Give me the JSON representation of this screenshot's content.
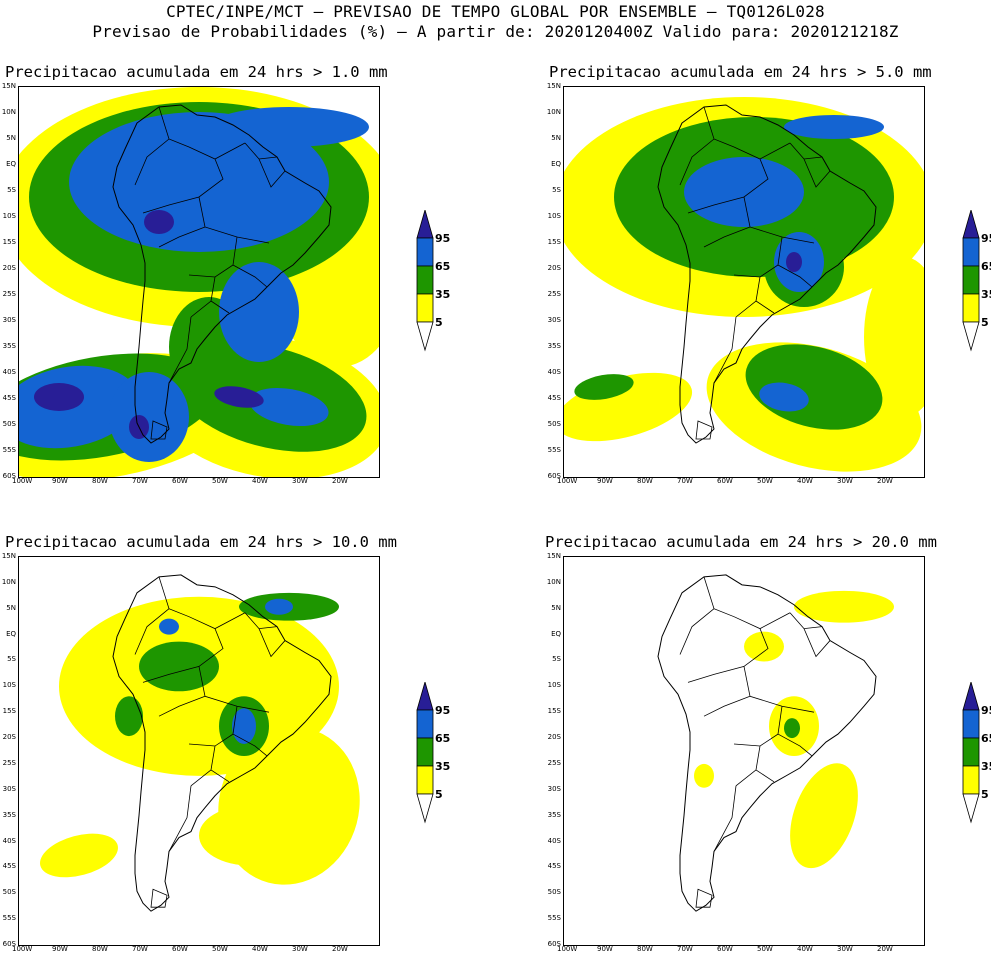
{
  "header": {
    "title_line1": "CPTEC/INPE/MCT – PREVISAO DE TEMPO GLOBAL POR ENSEMBLE – TQ0126L028",
    "title_line2": "Previsao de Probabilidades (%) –  A partir de: 2020120400Z  Valido para: 2020121218Z"
  },
  "colors": {
    "yellow": "#ffff00",
    "green": "#1e9600",
    "blue": "#1464d2",
    "darkblue": "#281e96",
    "outline": "#000000"
  },
  "lat_labels": [
    "15N",
    "10N",
    "5N",
    "EQ",
    "5S",
    "10S",
    "15S",
    "20S",
    "25S",
    "30S",
    "35S",
    "40S",
    "45S",
    "50S",
    "55S",
    "60S"
  ],
  "lon_labels": [
    "100W",
    "90W",
    "80W",
    "70W",
    "60W",
    "50W",
    "40W",
    "30W",
    "20W"
  ],
  "legend": {
    "levels": [
      "95",
      "65",
      "35",
      "5"
    ]
  },
  "panels": [
    {
      "title": "Precipitacao acumulada em 24 hrs > 1.0 mm"
    },
    {
      "title": "Precipitacao acumulada em 24 hrs > 5.0 mm"
    },
    {
      "title": "Precipitacao acumulada em 24 hrs > 10.0 mm"
    },
    {
      "title": "Precipitacao acumulada em 24 hrs > 20.0 mm"
    }
  ]
}
